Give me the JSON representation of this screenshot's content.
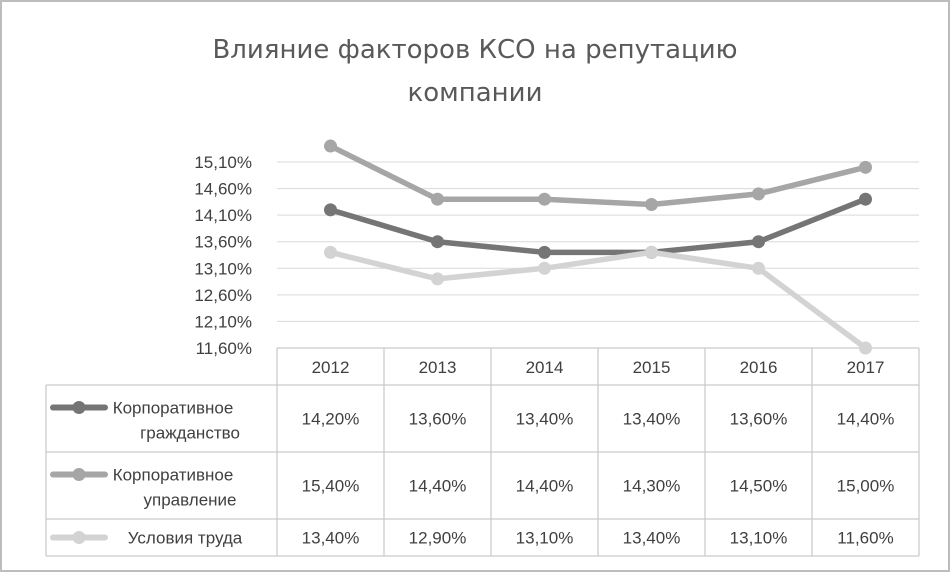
{
  "chart_data": {
    "type": "line",
    "title": "Влияние факторов КСО на репутацию компании",
    "title_lines": [
      "Влияние факторов КСО на репутацию",
      "компании"
    ],
    "categories": [
      "2012",
      "2013",
      "2014",
      "2015",
      "2016",
      "2017"
    ],
    "y_ticks": [
      "15,10%",
      "14,60%",
      "14,10%",
      "13,60%",
      "13,10%",
      "12,60%",
      "12,10%",
      "11,60%"
    ],
    "ylim": [
      11.6,
      15.1
    ],
    "grid": true,
    "legend": "data-table",
    "series": [
      {
        "name": "Корпоративное гражданство",
        "name_lines": [
          "Корпоративное",
          "гражданство"
        ],
        "color": "#757575",
        "values": [
          14.2,
          13.6,
          13.4,
          13.4,
          13.6,
          14.4
        ],
        "labels": [
          "14,20%",
          "13,60%",
          "13,40%",
          "13,40%",
          "13,60%",
          "14,40%"
        ]
      },
      {
        "name": "Корпоративное управление",
        "name_lines": [
          "Корпоративное",
          "управление"
        ],
        "color": "#a6a6a6",
        "values": [
          15.4,
          14.4,
          14.4,
          14.3,
          14.5,
          15.0
        ],
        "labels": [
          "15,40%",
          "14,40%",
          "14,40%",
          "14,30%",
          "14,50%",
          "15,00%"
        ]
      },
      {
        "name": "Условия труда",
        "name_lines": [
          "Условия труда"
        ],
        "color": "#d3d3d3",
        "values": [
          13.4,
          12.9,
          13.1,
          13.4,
          13.1,
          11.6
        ],
        "labels": [
          "13,40%",
          "12,90%",
          "13,10%",
          "13,40%",
          "13,10%",
          "11,60%"
        ]
      }
    ]
  }
}
